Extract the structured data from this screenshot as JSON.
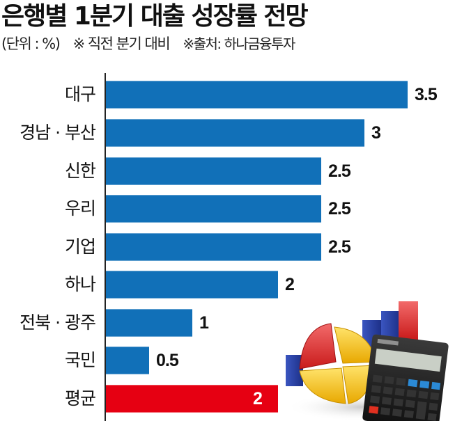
{
  "header": {
    "title": "은행별 1분기 대출 성장률 전망",
    "unit": "(단위 : %)",
    "note": "※ 직전 분기 대비",
    "source": "※출처: 하나금융투자"
  },
  "colors": {
    "bar": "#1170b8",
    "average_bar": "#e60012",
    "axis": "#222222"
  },
  "chart_data": {
    "type": "bar",
    "orientation": "horizontal",
    "title": "은행별 1분기 대출 성장률 전망",
    "subtitle": "(단위 : %) ※ 직전 분기 대비",
    "source": "※출처: 하나금융투자",
    "xlabel": "",
    "ylabel": "",
    "unit": "%",
    "categories": [
      "대구",
      "경남 · 부산",
      "신한",
      "우리",
      "기업",
      "하나",
      "전북 · 광주",
      "국민",
      "평균"
    ],
    "values": [
      3.5,
      3,
      2.5,
      2.5,
      2.5,
      2,
      1,
      0.5,
      2
    ],
    "value_labels": [
      "3.5",
      "3",
      "2.5",
      "2.5",
      "2.5",
      "2",
      "1",
      "0.5",
      "2"
    ],
    "highlight": {
      "category": "평균",
      "color": "#e60012"
    },
    "xlim": [
      0,
      3.5
    ],
    "grid": false,
    "legend": null
  },
  "illustration": {
    "icons": [
      "pie-chart-icon",
      "bar-chart-icon",
      "calculator-icon"
    ]
  }
}
